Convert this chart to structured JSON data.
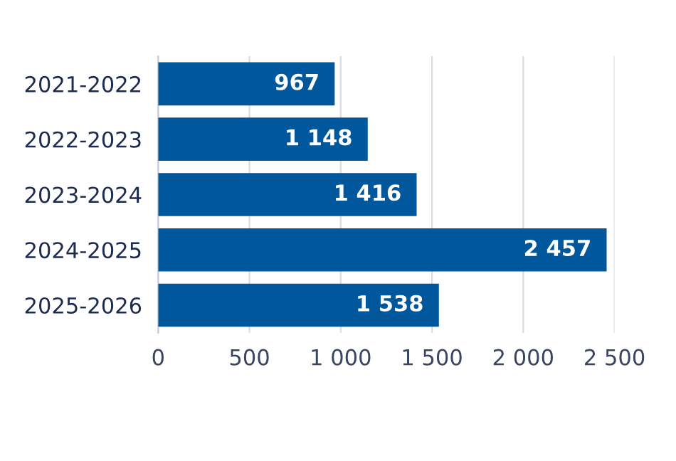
{
  "chart_data": {
    "type": "bar",
    "orientation": "horizontal",
    "categories": [
      "2021-2022",
      "2022-2023",
      "2023-2024",
      "2024-2025",
      "2025-2026"
    ],
    "values": [
      967,
      1148,
      1416,
      2457,
      1538
    ],
    "color": "#00579c",
    "value_labels": [
      "967",
      "1 148",
      "1 416",
      "2 457",
      "1 538"
    ],
    "xlim": [
      0,
      2500
    ],
    "xticks": [
      0,
      500,
      {
        "value": 1000,
        "label": "1 000"
      },
      {
        "value": 1500,
        "label": "1 500"
      },
      {
        "value": 2000,
        "label": "2 000"
      },
      {
        "value": 2500,
        "label": "2 500"
      }
    ],
    "grid": "x",
    "legend": false
  }
}
